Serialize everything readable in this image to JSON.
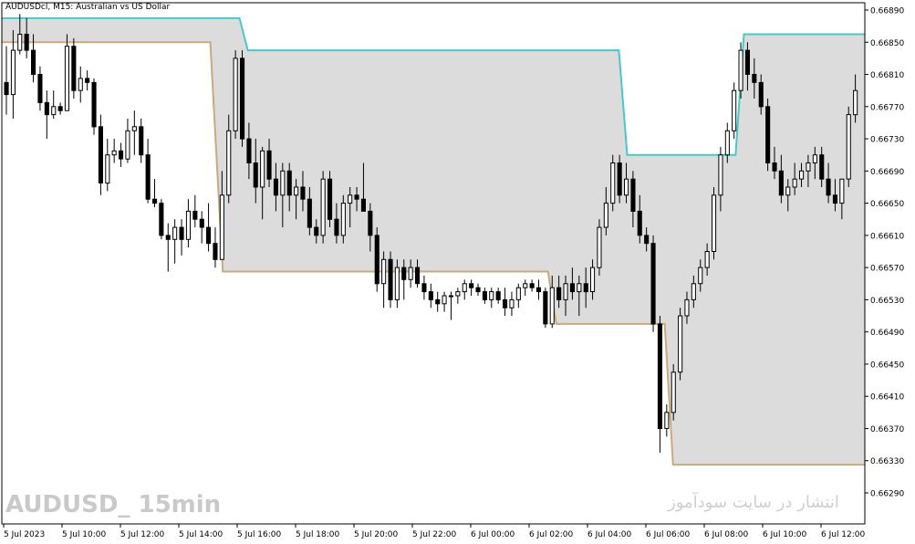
{
  "header": {
    "title": "AUDUSDcl, M15:  Australian vs US Dollar"
  },
  "watermark": {
    "left": "AUDUSD_ 15min",
    "right": "انتشار در سایت سودآموز"
  },
  "colors": {
    "bull_body": "#ffffff",
    "bear_body": "#000000",
    "upper_band": "#48c8c8",
    "lower_band": "#c8aa80",
    "channel_fill": "#dcdcdc",
    "frame": "#000000",
    "axis_text": "#000000"
  },
  "chart_data": {
    "type": "candlestick",
    "title": "AUDUSDcl, M15:  Australian vs US Dollar",
    "ylim": [
      0.6627,
      0.6691
    ],
    "y_ticks": [
      "0.66890",
      "0.66850",
      "0.66810",
      "0.66770",
      "0.66730",
      "0.66690",
      "0.66650",
      "0.66610",
      "0.66570",
      "0.66530",
      "0.66490",
      "0.66450",
      "0.66410",
      "0.66370",
      "0.66330",
      "0.66290"
    ],
    "x_ticks": [
      "5 Jul 2023",
      "5 Jul 10:00",
      "5 Jul 12:00",
      "5 Jul 14:00",
      "5 Jul 16:00",
      "5 Jul 18:00",
      "5 Jul 20:00",
      "5 Jul 22:00",
      "6 Jul 00:00",
      "6 Jul 02:00",
      "6 Jul 04:00",
      "6 Jul 06:00",
      "6 Jul 08:00",
      "6 Jul 10:00",
      "6 Jul 12:00"
    ],
    "candles": [
      [
        0.668,
        0.66845,
        0.6676,
        0.66785
      ],
      [
        0.66785,
        0.66865,
        0.66755,
        0.6684
      ],
      [
        0.6684,
        0.66885,
        0.66835,
        0.6686
      ],
      [
        0.6686,
        0.6688,
        0.6683,
        0.6684
      ],
      [
        0.6684,
        0.6686,
        0.668,
        0.6681
      ],
      [
        0.6681,
        0.6682,
        0.66765,
        0.66775
      ],
      [
        0.66775,
        0.6679,
        0.6673,
        0.6676
      ],
      [
        0.6676,
        0.6679,
        0.66755,
        0.6677
      ],
      [
        0.6677,
        0.66775,
        0.6676,
        0.66765
      ],
      [
        0.66765,
        0.6686,
        0.66765,
        0.66845
      ],
      [
        0.66845,
        0.66855,
        0.6678,
        0.6679
      ],
      [
        0.6679,
        0.6682,
        0.66775,
        0.66805
      ],
      [
        0.66805,
        0.66815,
        0.6679,
        0.668
      ],
      [
        0.668,
        0.66805,
        0.66735,
        0.66745
      ],
      [
        0.66745,
        0.6676,
        0.6666,
        0.66675
      ],
      [
        0.66675,
        0.6673,
        0.66665,
        0.6671
      ],
      [
        0.6671,
        0.6673,
        0.667,
        0.66715
      ],
      [
        0.66715,
        0.66725,
        0.66695,
        0.66705
      ],
      [
        0.66705,
        0.66755,
        0.667,
        0.6674
      ],
      [
        0.6674,
        0.66765,
        0.6671,
        0.66745
      ],
      [
        0.66745,
        0.66755,
        0.667,
        0.6671
      ],
      [
        0.6671,
        0.6673,
        0.6665,
        0.66655
      ],
      [
        0.66655,
        0.6668,
        0.66645,
        0.6665
      ],
      [
        0.6665,
        0.66655,
        0.66605,
        0.6661
      ],
      [
        0.6661,
        0.66625,
        0.66565,
        0.66605
      ],
      [
        0.66605,
        0.6663,
        0.66575,
        0.6662
      ],
      [
        0.6662,
        0.6663,
        0.66585,
        0.66605
      ],
      [
        0.66605,
        0.66655,
        0.66595,
        0.6664
      ],
      [
        0.6664,
        0.6666,
        0.6662,
        0.6663
      ],
      [
        0.6663,
        0.6664,
        0.666,
        0.6662
      ],
      [
        0.6662,
        0.6665,
        0.6659,
        0.666
      ],
      [
        0.666,
        0.6662,
        0.6657,
        0.6658
      ],
      [
        0.6658,
        0.6669,
        0.6658,
        0.6666
      ],
      [
        0.6666,
        0.6676,
        0.6665,
        0.6674
      ],
      [
        0.6674,
        0.6684,
        0.6673,
        0.6683
      ],
      [
        0.6683,
        0.6684,
        0.6672,
        0.6673
      ],
      [
        0.6673,
        0.6675,
        0.6668,
        0.667
      ],
      [
        0.667,
        0.6673,
        0.6665,
        0.6667
      ],
      [
        0.6667,
        0.6672,
        0.6663,
        0.66715
      ],
      [
        0.66715,
        0.6673,
        0.6667,
        0.6668
      ],
      [
        0.6668,
        0.667,
        0.6664,
        0.6666
      ],
      [
        0.6666,
        0.667,
        0.6662,
        0.6669
      ],
      [
        0.6669,
        0.667,
        0.6664,
        0.6666
      ],
      [
        0.6666,
        0.6668,
        0.6663,
        0.6667
      ],
      [
        0.6667,
        0.6669,
        0.6664,
        0.66655
      ],
      [
        0.66655,
        0.6667,
        0.6661,
        0.6662
      ],
      [
        0.6662,
        0.6663,
        0.666,
        0.6661
      ],
      [
        0.6661,
        0.6669,
        0.666,
        0.6668
      ],
      [
        0.6668,
        0.6669,
        0.6662,
        0.6663
      ],
      [
        0.6663,
        0.6665,
        0.666,
        0.6661
      ],
      [
        0.6661,
        0.6666,
        0.666,
        0.6665
      ],
      [
        0.6665,
        0.6667,
        0.6662,
        0.6666
      ],
      [
        0.6666,
        0.6667,
        0.6664,
        0.66655
      ],
      [
        0.66655,
        0.667,
        0.6664,
        0.6664
      ],
      [
        0.6664,
        0.6665,
        0.6659,
        0.6661
      ],
      [
        0.6661,
        0.6662,
        0.6654,
        0.6655
      ],
      [
        0.6655,
        0.6659,
        0.6652,
        0.6658
      ],
      [
        0.6658,
        0.6659,
        0.6652,
        0.6653
      ],
      [
        0.6653,
        0.6658,
        0.6652,
        0.6657
      ],
      [
        0.6657,
        0.6658,
        0.6653,
        0.66555
      ],
      [
        0.66555,
        0.6658,
        0.66545,
        0.6657
      ],
      [
        0.6657,
        0.6658,
        0.66545,
        0.6655
      ],
      [
        0.6655,
        0.6656,
        0.6653,
        0.6654
      ],
      [
        0.6654,
        0.6655,
        0.6652,
        0.6653
      ],
      [
        0.6653,
        0.6654,
        0.66515,
        0.66525
      ],
      [
        0.66525,
        0.6654,
        0.66515,
        0.66535
      ],
      [
        0.66535,
        0.6654,
        0.66505,
        0.66535
      ],
      [
        0.66535,
        0.66545,
        0.66525,
        0.6654
      ],
      [
        0.6654,
        0.66555,
        0.6653,
        0.6655
      ],
      [
        0.6655,
        0.66555,
        0.66535,
        0.66545
      ],
      [
        0.66545,
        0.6655,
        0.66535,
        0.6654
      ],
      [
        0.6654,
        0.66545,
        0.66525,
        0.6653
      ],
      [
        0.6653,
        0.66545,
        0.6652,
        0.6654
      ],
      [
        0.6654,
        0.66545,
        0.66525,
        0.6653
      ],
      [
        0.6653,
        0.66545,
        0.6651,
        0.6652
      ],
      [
        0.6652,
        0.6654,
        0.6651,
        0.6653
      ],
      [
        0.6653,
        0.6655,
        0.6652,
        0.66545
      ],
      [
        0.66545,
        0.66555,
        0.66535,
        0.6655
      ],
      [
        0.6655,
        0.66555,
        0.6654,
        0.66545
      ],
      [
        0.66545,
        0.66555,
        0.6653,
        0.6654
      ],
      [
        0.6654,
        0.66545,
        0.66495,
        0.665
      ],
      [
        0.665,
        0.6656,
        0.66495,
        0.66545
      ],
      [
        0.66545,
        0.6656,
        0.6652,
        0.6653
      ],
      [
        0.6653,
        0.6656,
        0.6651,
        0.6655
      ],
      [
        0.6655,
        0.6657,
        0.6653,
        0.6654
      ],
      [
        0.6654,
        0.6656,
        0.6651,
        0.6655
      ],
      [
        0.6655,
        0.6657,
        0.6652,
        0.6654
      ],
      [
        0.6654,
        0.6658,
        0.6653,
        0.6657
      ],
      [
        0.6657,
        0.6663,
        0.6656,
        0.6662
      ],
      [
        0.6662,
        0.6667,
        0.6661,
        0.6665
      ],
      [
        0.6665,
        0.6671,
        0.6664,
        0.667
      ],
      [
        0.667,
        0.6671,
        0.6665,
        0.6666
      ],
      [
        0.6666,
        0.667,
        0.6665,
        0.6668
      ],
      [
        0.6668,
        0.6669,
        0.6662,
        0.6664
      ],
      [
        0.6664,
        0.6666,
        0.666,
        0.6661
      ],
      [
        0.6661,
        0.6662,
        0.6659,
        0.666
      ],
      [
        0.666,
        0.6661,
        0.6649,
        0.665
      ],
      [
        0.665,
        0.6651,
        0.6634,
        0.6637
      ],
      [
        0.6637,
        0.664,
        0.6636,
        0.6639
      ],
      [
        0.6639,
        0.6645,
        0.6638,
        0.6644
      ],
      [
        0.6644,
        0.6652,
        0.6643,
        0.6651
      ],
      [
        0.6651,
        0.6654,
        0.665,
        0.6653
      ],
      [
        0.6653,
        0.6656,
        0.6652,
        0.6655
      ],
      [
        0.6655,
        0.6658,
        0.6654,
        0.6657
      ],
      [
        0.6657,
        0.666,
        0.6656,
        0.6659
      ],
      [
        0.6659,
        0.6667,
        0.6658,
        0.6666
      ],
      [
        0.6666,
        0.6672,
        0.6664,
        0.6671
      ],
      [
        0.6671,
        0.6675,
        0.667,
        0.6674
      ],
      [
        0.6674,
        0.668,
        0.6673,
        0.6679
      ],
      [
        0.6679,
        0.6685,
        0.6678,
        0.6684
      ],
      [
        0.6684,
        0.6685,
        0.6679,
        0.6681
      ],
      [
        0.6681,
        0.6683,
        0.6678,
        0.668
      ],
      [
        0.668,
        0.6681,
        0.6676,
        0.6677
      ],
      [
        0.6677,
        0.6678,
        0.6669,
        0.667
      ],
      [
        0.667,
        0.6672,
        0.6668,
        0.6669
      ],
      [
        0.6669,
        0.6671,
        0.6665,
        0.6666
      ],
      [
        0.6666,
        0.6668,
        0.6664,
        0.6667
      ],
      [
        0.6667,
        0.667,
        0.6666,
        0.6668
      ],
      [
        0.6668,
        0.667,
        0.6667,
        0.6669
      ],
      [
        0.6669,
        0.6671,
        0.6667,
        0.667
      ],
      [
        0.667,
        0.6672,
        0.6668,
        0.6671
      ],
      [
        0.6671,
        0.6672,
        0.6667,
        0.6668
      ],
      [
        0.6668,
        0.667,
        0.6665,
        0.6666
      ],
      [
        0.6666,
        0.6668,
        0.6664,
        0.6665
      ],
      [
        0.6665,
        0.6668,
        0.6663,
        0.6668
      ],
      [
        0.6668,
        0.6677,
        0.6667,
        0.6676
      ],
      [
        0.6676,
        0.6681,
        0.6675,
        0.6679
      ]
    ],
    "upper_band": [
      [
        0,
        0.6688
      ],
      [
        57,
        0.6688
      ],
      [
        59,
        0.6684
      ],
      [
        148,
        0.6684
      ],
      [
        150,
        0.6671
      ],
      [
        176,
        0.6671
      ],
      [
        178,
        0.6686
      ],
      [
        207,
        0.6686
      ]
    ],
    "lower_band": [
      [
        0,
        0.6685
      ],
      [
        50,
        0.6685
      ],
      [
        53,
        0.66565
      ],
      [
        131,
        0.66565
      ],
      [
        133,
        0.665
      ],
      [
        159,
        0.665
      ],
      [
        161,
        0.66325
      ],
      [
        207,
        0.66325
      ]
    ],
    "band_x_range": [
      0,
      207
    ],
    "grid": false,
    "legend": "none"
  }
}
